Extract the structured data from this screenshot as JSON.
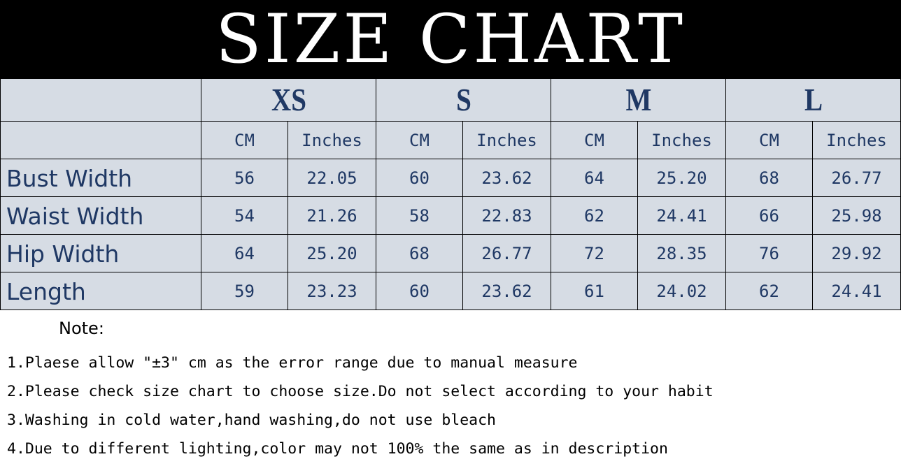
{
  "title": "SIZE CHART",
  "sizes": [
    "XS",
    "S",
    "M",
    "L"
  ],
  "units": [
    "CM",
    "Inches"
  ],
  "rows": [
    {
      "label": "Bust Width",
      "values": [
        "56",
        "22.05",
        "60",
        "23.62",
        "64",
        "25.20",
        "68",
        "26.77"
      ]
    },
    {
      "label": "Waist Width",
      "values": [
        "54",
        "21.26",
        "58",
        "22.83",
        "62",
        "24.41",
        "66",
        "25.98"
      ]
    },
    {
      "label": "Hip Width",
      "values": [
        "64",
        "25.20",
        "68",
        "26.77",
        "72",
        "28.35",
        "76",
        "29.92"
      ]
    },
    {
      "label": "Length",
      "values": [
        "59",
        "23.23",
        "60",
        "23.62",
        "61",
        "24.02",
        "62",
        "24.41"
      ]
    }
  ],
  "note_title": "Note:",
  "notes": [
    "1.Plaese allow \"±3\" cm as the error range due to manual measure",
    "2.Please check size chart to choose size.Do not select according to your habit",
    "3.Washing in cold water,hand washing,do not use bleach",
    "4.Due to different lighting,color may not 100% the same as in description"
  ],
  "colors": {
    "table_bg": "#d6dce4",
    "text": "#1f3864",
    "header_bg": "#000000"
  }
}
